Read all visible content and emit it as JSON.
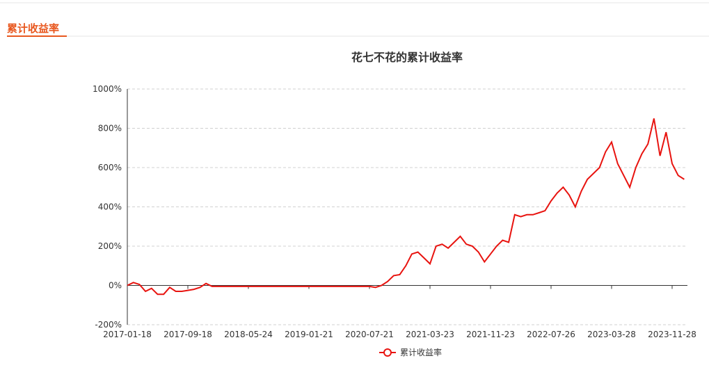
{
  "header": {
    "title": "累计收益率"
  },
  "chart_data": {
    "type": "line",
    "title": "花七不花的累计收益率",
    "categories": [
      "2017-01-18",
      null,
      null,
      null,
      null,
      null,
      null,
      null,
      null,
      null,
      "2017-09-18",
      null,
      null,
      null,
      null,
      null,
      null,
      null,
      null,
      null,
      "2018-05-24",
      null,
      null,
      null,
      null,
      null,
      null,
      null,
      null,
      null,
      "2019-01-21",
      null,
      null,
      null,
      null,
      null,
      null,
      null,
      null,
      null,
      "2020-07-21",
      null,
      null,
      null,
      null,
      null,
      null,
      null,
      null,
      null,
      "2021-03-23",
      null,
      null,
      null,
      null,
      null,
      null,
      null,
      null,
      null,
      "2021-11-23",
      null,
      null,
      null,
      null,
      null,
      null,
      null,
      null,
      null,
      "2022-07-26",
      null,
      null,
      null,
      null,
      null,
      null,
      null,
      null,
      null,
      "2023-03-28",
      null,
      null,
      null,
      null,
      null,
      null,
      null,
      null,
      null,
      "2023-11-28",
      null,
      null
    ],
    "series": [
      {
        "name": "累计收益率",
        "color": "#e8130f",
        "values": [
          0,
          15,
          5,
          -30,
          -15,
          -45,
          -45,
          -10,
          -30,
          -30,
          -25,
          -20,
          -10,
          10,
          -5,
          -5,
          -5,
          -5,
          -5,
          -5,
          -5,
          -5,
          -5,
          -5,
          -5,
          -5,
          -5,
          -5,
          -5,
          -5,
          -5,
          -5,
          -5,
          -5,
          -5,
          -5,
          -5,
          -5,
          -5,
          -5,
          -5,
          -10,
          0,
          20,
          50,
          55,
          100,
          160,
          170,
          140,
          110,
          200,
          210,
          190,
          220,
          250,
          210,
          200,
          170,
          120,
          160,
          200,
          230,
          220,
          360,
          350,
          360,
          360,
          370,
          380,
          430,
          470,
          500,
          460,
          400,
          480,
          540,
          570,
          600,
          680,
          730,
          620,
          560,
          500,
          600,
          670,
          720,
          850,
          660,
          780,
          620,
          560,
          540
        ]
      }
    ],
    "ylim": [
      -200,
      1000
    ],
    "yticks": [
      {
        "value": -200,
        "label": "-200%"
      },
      {
        "value": 0,
        "label": "0%"
      },
      {
        "value": 200,
        "label": "200%"
      },
      {
        "value": 400,
        "label": "400%"
      },
      {
        "value": 600,
        "label": "600%"
      },
      {
        "value": 800,
        "label": "800%"
      },
      {
        "value": 1000,
        "label": "1000%"
      }
    ],
    "grid": true
  }
}
